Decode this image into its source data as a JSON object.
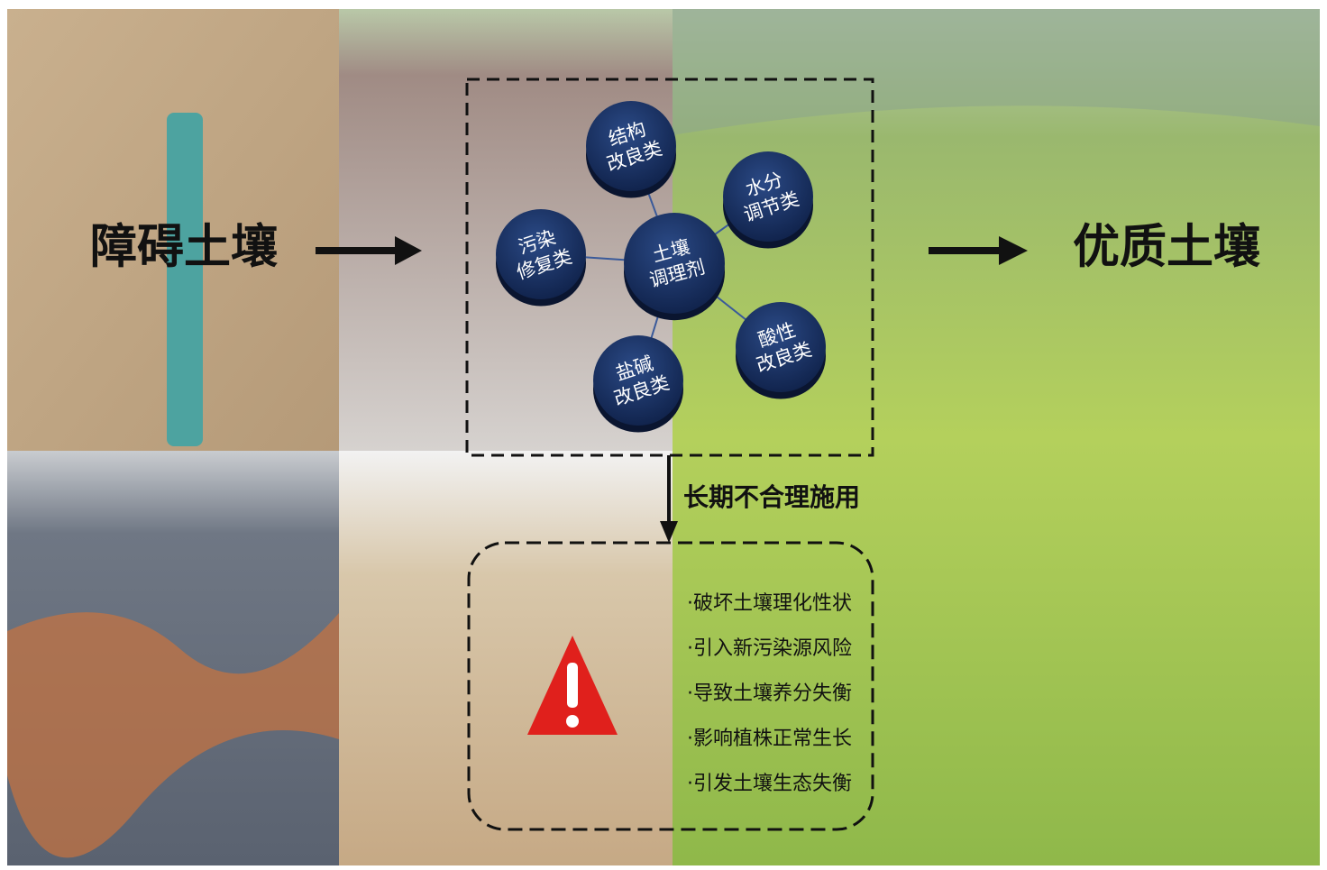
{
  "left_label": "障碍土壤",
  "right_label": "优质土壤",
  "center": {
    "lines": [
      "土壤",
      "调理剂"
    ]
  },
  "nodes": [
    {
      "lines": [
        "结构",
        "改良类"
      ]
    },
    {
      "lines": [
        "水分",
        "调节类"
      ]
    },
    {
      "lines": [
        "污染",
        "修复类"
      ]
    },
    {
      "lines": [
        "酸性",
        "改良类"
      ]
    },
    {
      "lines": [
        "盐碱",
        "改良类"
      ]
    }
  ],
  "arrow_label": "长期不合理施用",
  "effects": [
    "·破坏土壤理化性状",
    "·引入新污染源风险",
    "·导致土壤养分失衡",
    "·影响植株正常生长",
    "·引发土壤生态失衡"
  ]
}
